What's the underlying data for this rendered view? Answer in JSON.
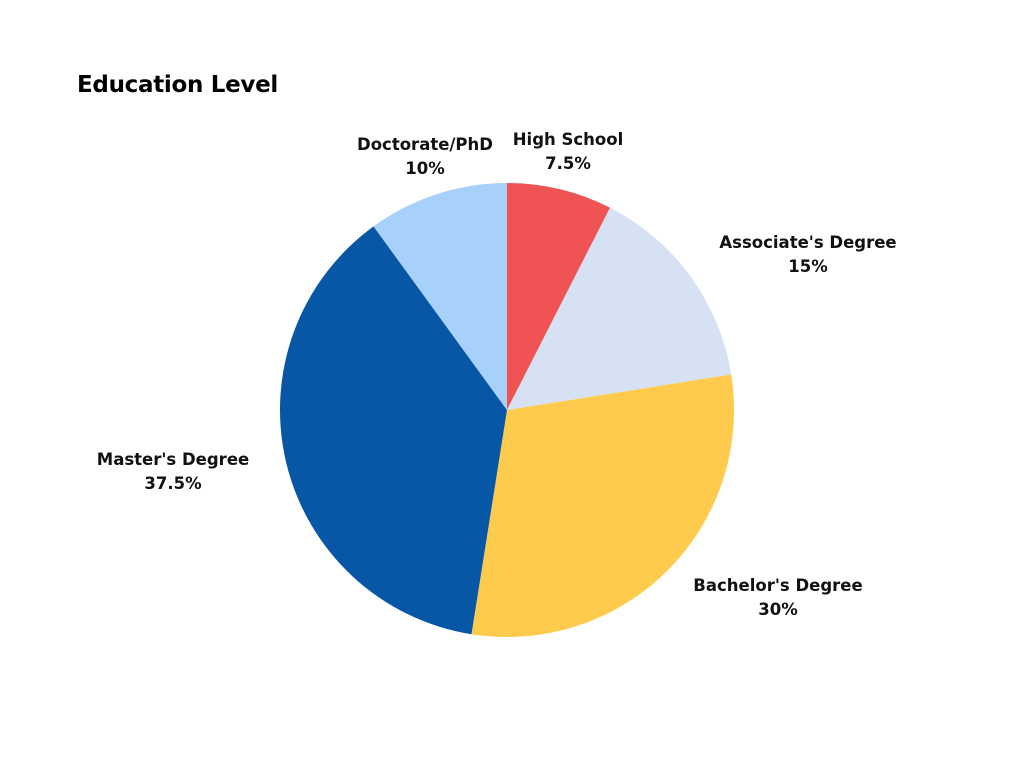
{
  "chart_data": {
    "type": "pie",
    "title": "Education Level",
    "slices": [
      {
        "label": "High School",
        "value": 7.5,
        "value_label": "7.5%",
        "color": "#EF5353"
      },
      {
        "label": "Associate's Degree",
        "value": 15,
        "value_label": "15%",
        "color": "#D6E2F3"
      },
      {
        "label": "Bachelor's Degree",
        "value": 30,
        "value_label": "30%",
        "color": "#FECB4C"
      },
      {
        "label": "Master's Degree",
        "value": 37.5,
        "value_label": "37.5%",
        "color": "#0857A7"
      },
      {
        "label": "Doctorate/PhD",
        "value": 10,
        "value_label": "10%",
        "color": "#A7D1FB"
      }
    ],
    "start_angle": "12 o'clock",
    "direction": "clockwise",
    "legend": "none",
    "labels": "outside"
  }
}
